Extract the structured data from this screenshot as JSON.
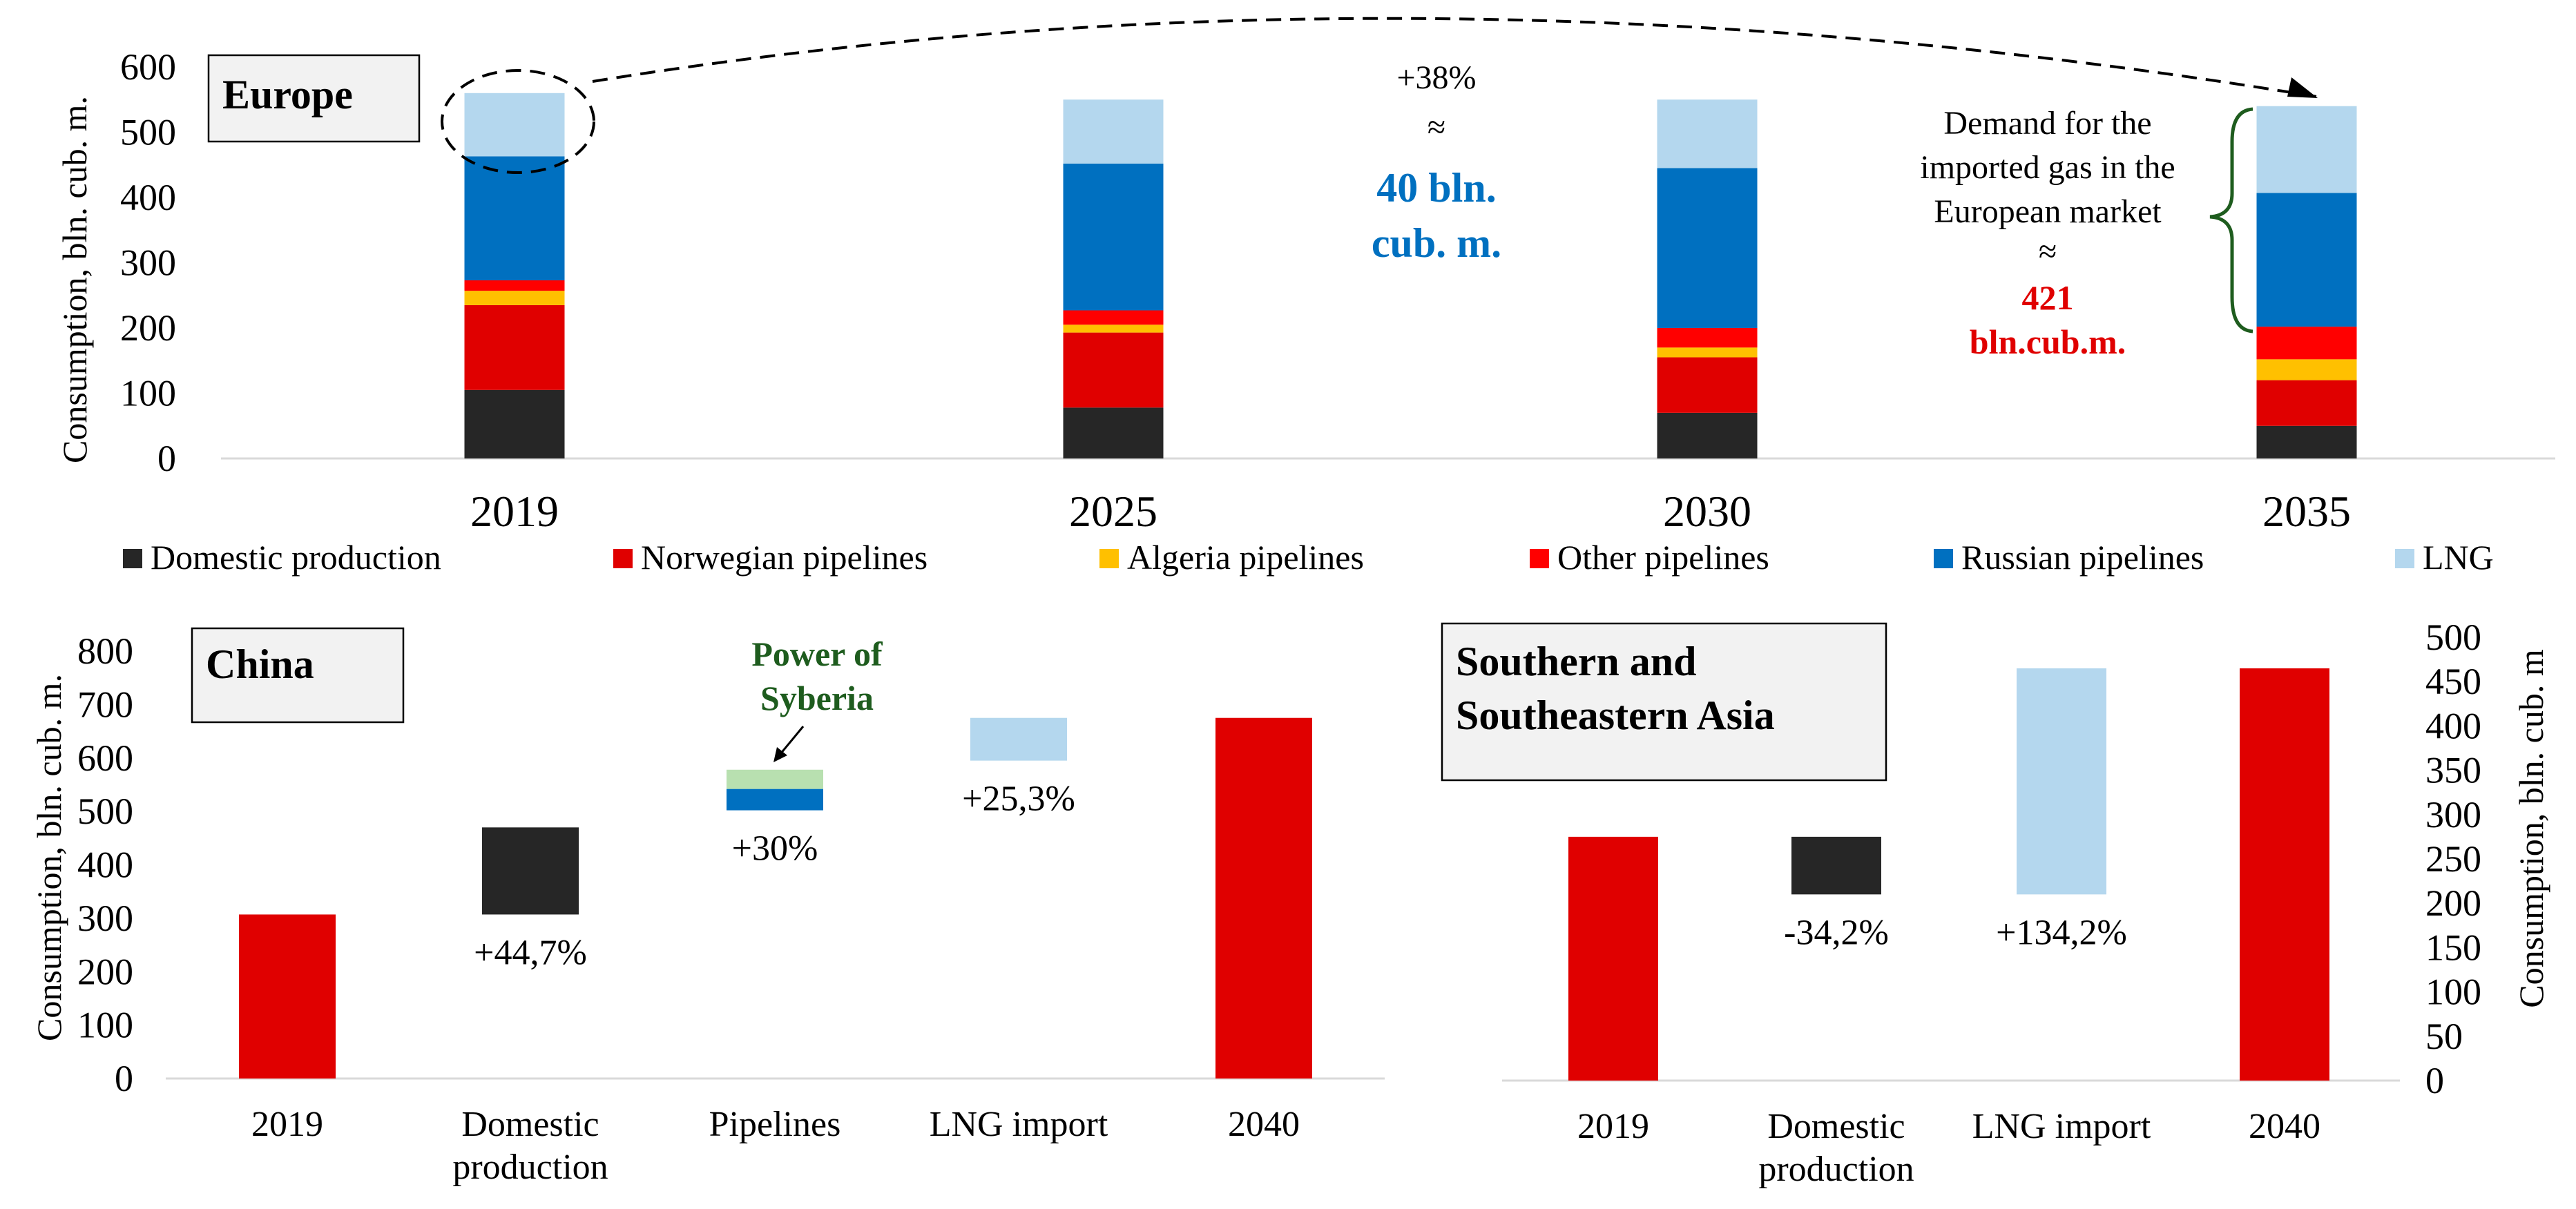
{
  "chart_data": [
    {
      "type": "stacked-bar",
      "title": "Europe",
      "ylabel": "Consumption, bln. cub. m.",
      "ylim": [
        0,
        600
      ],
      "yticks": [
        0,
        100,
        200,
        300,
        400,
        500,
        600
      ],
      "categories": [
        "2019",
        "2025",
        "2030",
        "2035"
      ],
      "series": [
        {
          "name": "Domestic production",
          "color": "#262626",
          "values": [
            105,
            78,
            70,
            50
          ]
        },
        {
          "name": "Norwegian pipelines",
          "color": "#e00000",
          "values": [
            130,
            115,
            85,
            70
          ]
        },
        {
          "name": "Algeria pipelines",
          "color": "#ffc000",
          "values": [
            22,
            12,
            15,
            32
          ]
        },
        {
          "name": "Other pipelines",
          "color": "#ff0000",
          "values": [
            16,
            22,
            30,
            50
          ]
        },
        {
          "name": "Russian pipelines",
          "color": "#0070c0",
          "values": [
            190,
            225,
            245,
            205
          ]
        },
        {
          "name": "LNG",
          "color": "#b4d7ee",
          "values": [
            97,
            98,
            105,
            133
          ]
        }
      ],
      "annotations": {
        "growth": "+38%",
        "approx": "≈",
        "growth_value_line1": "40 bln.",
        "growth_value_line2": "cub. m.",
        "demand_line1": "Demand for the",
        "demand_line2": "imported gas in the",
        "demand_line3": "European market",
        "demand_approx": "≈",
        "demand_value_line1": "421",
        "demand_value_line2": "bln.cub.m."
      }
    },
    {
      "type": "waterfall",
      "title": "China",
      "ylabel": "Consumption, bln. cub. m.",
      "ylim": [
        0,
        800
      ],
      "yticks": [
        0,
        100,
        200,
        300,
        400,
        500,
        600,
        700,
        800
      ],
      "categories": [
        {
          "line1": "2019",
          "line2": ""
        },
        {
          "line1": "Domestic",
          "line2": "production"
        },
        {
          "line1": "Pipelines",
          "line2": ""
        },
        {
          "line1": "LNG import",
          "line2": ""
        },
        {
          "line1": "2040",
          "line2": ""
        }
      ],
      "bars": [
        {
          "segments": [
            {
              "from": 0,
              "to": 307,
              "color": "#e00000"
            }
          ],
          "label": ""
        },
        {
          "segments": [
            {
              "from": 307,
              "to": 470,
              "color": "#262626"
            }
          ],
          "label": "+44,7%"
        },
        {
          "segments": [
            {
              "from": 502,
              "to": 542,
              "color": "#0070c0"
            },
            {
              "from": 542,
              "to": 578,
              "color": "#b8e0b0"
            }
          ],
          "label": "+30%"
        },
        {
          "segments": [
            {
              "from": 595,
              "to": 675,
              "color": "#b4d7ee"
            }
          ],
          "label": "+25,3%"
        },
        {
          "segments": [
            {
              "from": 0,
              "to": 675,
              "color": "#e00000"
            }
          ],
          "label": ""
        }
      ],
      "annotation_line1": "Power of",
      "annotation_line2": "Syberia"
    },
    {
      "type": "waterfall",
      "title_line1": "Southern and",
      "title_line2": "Southeastern Asia",
      "ylabel": "Consumption, bln. cub. m",
      "ylim": [
        0,
        500
      ],
      "yticks": [
        0,
        50,
        100,
        150,
        200,
        250,
        300,
        350,
        400,
        450,
        500
      ],
      "categories": [
        {
          "line1": "2019",
          "line2": ""
        },
        {
          "line1": "Domestic",
          "line2": "production"
        },
        {
          "line1": "LNG import",
          "line2": ""
        },
        {
          "line1": "2040",
          "line2": ""
        }
      ],
      "bars": [
        {
          "segments": [
            {
              "from": 0,
              "to": 275,
              "color": "#e00000"
            }
          ],
          "label": ""
        },
        {
          "segments": [
            {
              "from": 210,
              "to": 275,
              "color": "#262626"
            }
          ],
          "label": "-34,2%"
        },
        {
          "segments": [
            {
              "from": 210,
              "to": 465,
              "color": "#b4d7ee"
            }
          ],
          "label": "+134,2%"
        },
        {
          "segments": [
            {
              "from": 0,
              "to": 465,
              "color": "#e00000"
            }
          ],
          "label": ""
        }
      ]
    }
  ]
}
